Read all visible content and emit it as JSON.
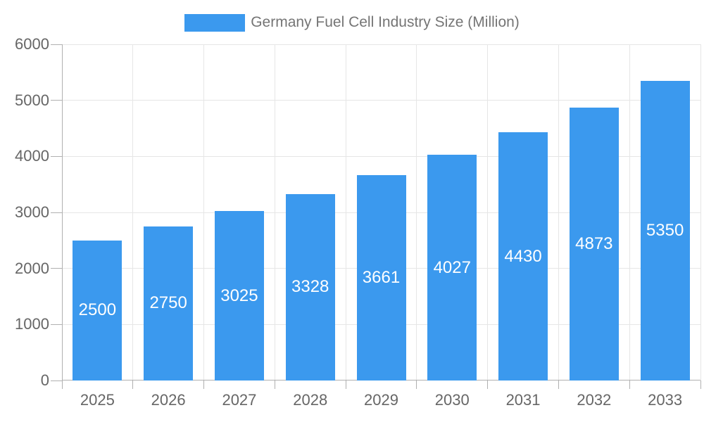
{
  "legend": {
    "label": "Germany Fuel Cell Industry Size (Million)"
  },
  "chart_data": {
    "type": "bar",
    "categories": [
      "2025",
      "2026",
      "2027",
      "2028",
      "2029",
      "2030",
      "2031",
      "2032",
      "2033"
    ],
    "series": [
      {
        "name": "Germany Fuel Cell Industry Size (Million)",
        "values": [
          2500,
          2750,
          3025,
          3328,
          3661,
          4027,
          4430,
          4873,
          5350
        ]
      }
    ],
    "title": "",
    "xlabel": "",
    "ylabel": "",
    "ylim": [
      0,
      6000
    ],
    "yticks": [
      0,
      1000,
      2000,
      3000,
      4000,
      5000,
      6000
    ],
    "grid": true,
    "legend_position": "top",
    "value_labels_shown": true,
    "colors": {
      "bar": "#3b99ee",
      "bar_label": "#ffffff",
      "axis_text": "#666666",
      "legend_text": "#757575",
      "gridline": "#e6e6e6",
      "axis_line": "#b0b0b0"
    }
  }
}
